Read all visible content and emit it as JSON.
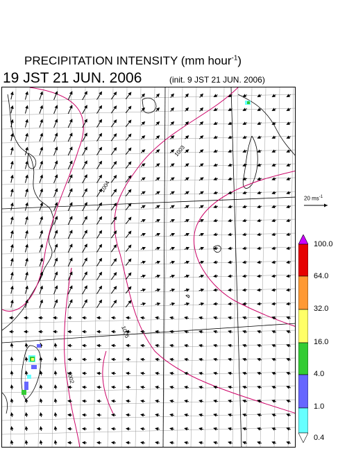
{
  "header": {
    "title": "PRECIPITATION INTENSITY (mm hour",
    "title_exp": "-1",
    "title_end": ")",
    "valid_time": "19 JST 21 JUN. 2006",
    "init_time": "(init. 9 JST 21 JUN. 2006)"
  },
  "wind_reference": {
    "label": "20 ms",
    "label_exp": "-1"
  },
  "colorbar": {
    "levels": [
      "100.0",
      "64.0",
      "32.0",
      "16.0",
      "4.0",
      "1.0",
      "0.4"
    ],
    "colors": [
      "#cc00ff",
      "#e60000",
      "#ff9933",
      "#ffff66",
      "#33cc33",
      "#6666ff",
      "#66ffff",
      "#ffffff"
    ]
  },
  "map": {
    "isobar_labels": [
      "1004",
      "1003",
      "1005",
      "1002"
    ],
    "isobar_color": "#cc0066",
    "grid_color": "#999999",
    "coast_color": "#000000"
  }
}
